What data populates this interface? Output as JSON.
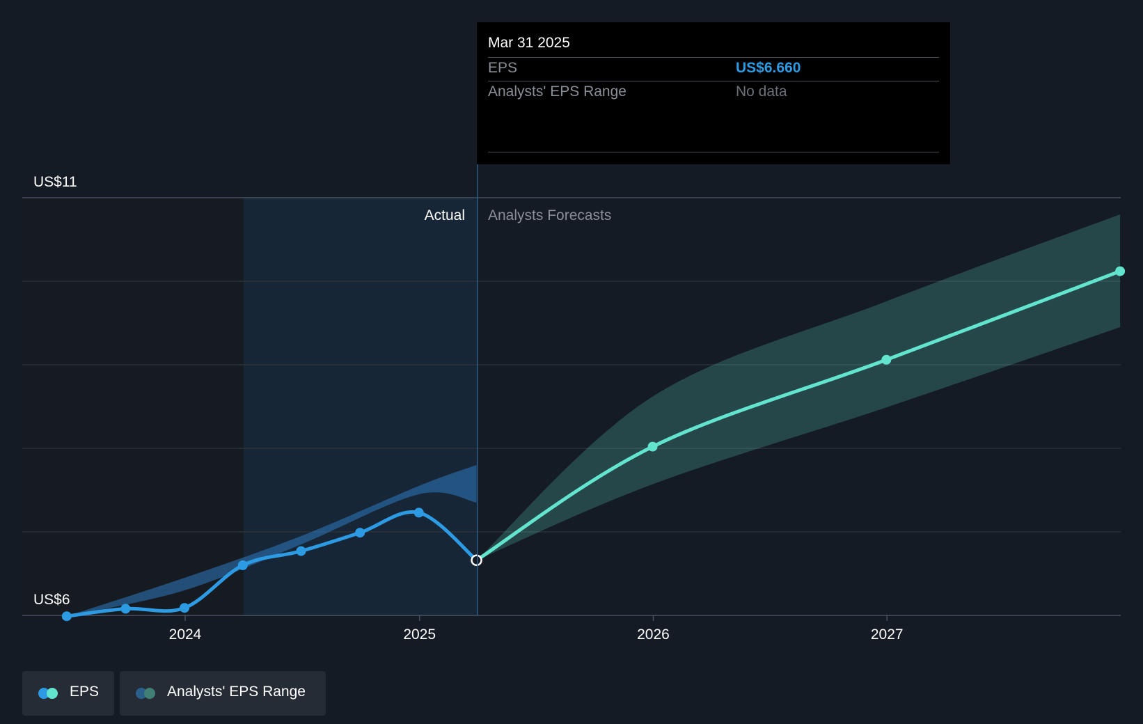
{
  "chart_data": {
    "type": "line",
    "y_axis": {
      "labels": [
        "US$11",
        "US$6"
      ],
      "ylim": [
        6,
        11
      ]
    },
    "x_axis": {
      "ticks": [
        "2024",
        "2025",
        "2026",
        "2027"
      ]
    },
    "regions": {
      "actual_label": "Actual",
      "forecast_label": "Analysts Forecasts"
    },
    "series": [
      {
        "name": "EPS",
        "color": "#2d9be3",
        "points": [
          {
            "x": "2023-06-30",
            "y": 5.99
          },
          {
            "x": "2023-09-30",
            "y": 6.08
          },
          {
            "x": "2023-12-31",
            "y": 6.09
          },
          {
            "x": "2024-03-31",
            "y": 6.6
          },
          {
            "x": "2024-06-30",
            "y": 6.77
          },
          {
            "x": "2024-09-30",
            "y": 6.99
          },
          {
            "x": "2024-12-31",
            "y": 7.23
          },
          {
            "x": "2025-03-31",
            "y": 6.66
          }
        ]
      },
      {
        "name": "EPS forecast",
        "color": "#62e4cf",
        "points": [
          {
            "x": "2025-03-31",
            "y": 6.66
          },
          {
            "x": "2025-12-31",
            "y": 8.02
          },
          {
            "x": "2026-12-31",
            "y": 9.06
          },
          {
            "x": "2027-12-31",
            "y": 10.12
          }
        ]
      }
    ],
    "range_past": {
      "name": "Analysts' EPS Range",
      "points": [
        {
          "x": "2023-06-30",
          "lo": 5.99,
          "hi": 5.99
        },
        {
          "x": "2023-12-31",
          "lo": 6.3,
          "hi": 6.45
        },
        {
          "x": "2024-06-30",
          "lo": 6.85,
          "hi": 6.95
        },
        {
          "x": "2024-12-31",
          "lo": 7.45,
          "hi": 7.55
        },
        {
          "x": "2025-03-31",
          "lo": 7.35,
          "hi": 7.8
        }
      ]
    },
    "range_forecast": {
      "name": "Analysts' EPS Range",
      "points": [
        {
          "x": "2025-03-31",
          "lo": 6.66,
          "hi": 6.66
        },
        {
          "x": "2025-12-31",
          "lo": 7.57,
          "hi": 8.62
        },
        {
          "x": "2026-12-31",
          "lo": 8.49,
          "hi": 9.76
        },
        {
          "x": "2027-12-31",
          "lo": 9.45,
          "hi": 10.8
        }
      ]
    }
  },
  "tooltip": {
    "date": "Mar 31 2025",
    "rows": [
      {
        "label": "EPS",
        "value": "US$6.660",
        "color": "#2d9be3"
      },
      {
        "label": "Analysts' EPS Range",
        "value": "No data",
        "color": "#6c7178"
      }
    ]
  },
  "legend": {
    "items": [
      {
        "label": "EPS",
        "colors": [
          "#2d9be3",
          "#62e4cf"
        ]
      },
      {
        "label": "Analysts' EPS Range",
        "colors": [
          "#2a5f8a",
          "#3f7f74"
        ]
      }
    ]
  }
}
